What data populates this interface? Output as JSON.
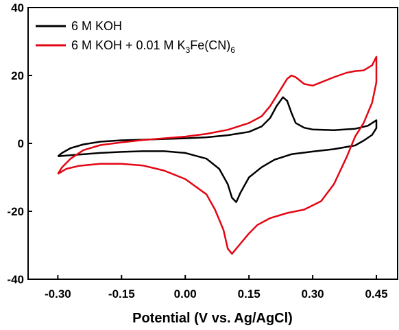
{
  "chart_data": {
    "type": "line",
    "title": "",
    "xlabel": "Potential (V vs. Ag/AgCl)",
    "ylabel": "",
    "xlim": [
      -0.37,
      0.5
    ],
    "ylim": [
      -40,
      40
    ],
    "x_ticks": [
      -0.3,
      -0.15,
      0.0,
      0.15,
      0.3,
      0.45
    ],
    "x_tick_labels": [
      "-0.30",
      "-0.15",
      "0.00",
      "0.15",
      "0.30",
      "0.45"
    ],
    "y_ticks": [
      -40,
      -20,
      0,
      20,
      40
    ],
    "y_tick_labels": [
      "-40",
      "-20",
      "0",
      "20",
      "40"
    ],
    "grid": false,
    "legend_position": "top-left",
    "series": [
      {
        "name": "6 M KOH",
        "color": "#000000",
        "points": [
          [
            -0.3,
            -3.8
          ],
          [
            -0.29,
            -2.8
          ],
          [
            -0.27,
            -1.4
          ],
          [
            -0.24,
            -0.3
          ],
          [
            -0.2,
            0.5
          ],
          [
            -0.15,
            0.9
          ],
          [
            -0.1,
            1.1
          ],
          [
            -0.05,
            1.3
          ],
          [
            0.0,
            1.5
          ],
          [
            0.05,
            1.8
          ],
          [
            0.1,
            2.4
          ],
          [
            0.15,
            3.4
          ],
          [
            0.18,
            5.0
          ],
          [
            0.2,
            7.5
          ],
          [
            0.215,
            11.0
          ],
          [
            0.23,
            13.6
          ],
          [
            0.24,
            12.5
          ],
          [
            0.25,
            9.0
          ],
          [
            0.26,
            6.0
          ],
          [
            0.28,
            4.6
          ],
          [
            0.3,
            4.1
          ],
          [
            0.35,
            3.9
          ],
          [
            0.4,
            4.3
          ],
          [
            0.43,
            5.2
          ],
          [
            0.45,
            6.8
          ],
          [
            0.45,
            4.5
          ],
          [
            0.44,
            2.5
          ],
          [
            0.42,
            0.8
          ],
          [
            0.4,
            -0.6
          ],
          [
            0.35,
            -1.7
          ],
          [
            0.3,
            -2.4
          ],
          [
            0.25,
            -3.2
          ],
          [
            0.21,
            -4.8
          ],
          [
            0.18,
            -7.0
          ],
          [
            0.15,
            -10.0
          ],
          [
            0.13,
            -14.5
          ],
          [
            0.12,
            -17.3
          ],
          [
            0.11,
            -16.0
          ],
          [
            0.1,
            -12.0
          ],
          [
            0.08,
            -7.5
          ],
          [
            0.05,
            -4.5
          ],
          [
            0.0,
            -2.8
          ],
          [
            -0.05,
            -2.3
          ],
          [
            -0.1,
            -2.3
          ],
          [
            -0.15,
            -2.5
          ],
          [
            -0.2,
            -2.8
          ],
          [
            -0.25,
            -3.3
          ],
          [
            -0.3,
            -3.8
          ]
        ]
      },
      {
        "name": "6 M KOH + 0.01 M K3Fe(CN)6",
        "color": "#e30613",
        "points": [
          [
            -0.3,
            -9.0
          ],
          [
            -0.29,
            -7.0
          ],
          [
            -0.27,
            -4.5
          ],
          [
            -0.24,
            -2.0
          ],
          [
            -0.2,
            -0.5
          ],
          [
            -0.15,
            0.3
          ],
          [
            -0.1,
            1.0
          ],
          [
            -0.05,
            1.5
          ],
          [
            0.0,
            2.0
          ],
          [
            0.05,
            2.8
          ],
          [
            0.1,
            4.0
          ],
          [
            0.15,
            6.0
          ],
          [
            0.18,
            8.0
          ],
          [
            0.2,
            11.0
          ],
          [
            0.22,
            15.0
          ],
          [
            0.24,
            19.0
          ],
          [
            0.25,
            20.0
          ],
          [
            0.26,
            19.5
          ],
          [
            0.28,
            17.5
          ],
          [
            0.3,
            17.0
          ],
          [
            0.32,
            18.0
          ],
          [
            0.35,
            19.5
          ],
          [
            0.38,
            20.8
          ],
          [
            0.4,
            21.3
          ],
          [
            0.42,
            21.5
          ],
          [
            0.44,
            23.0
          ],
          [
            0.45,
            25.5
          ],
          [
            0.45,
            18.0
          ],
          [
            0.44,
            12.0
          ],
          [
            0.42,
            6.0
          ],
          [
            0.4,
            2.0
          ],
          [
            0.38,
            -4.0
          ],
          [
            0.35,
            -12.0
          ],
          [
            0.32,
            -17.0
          ],
          [
            0.28,
            -19.5
          ],
          [
            0.24,
            -20.5
          ],
          [
            0.2,
            -22.0
          ],
          [
            0.17,
            -24.0
          ],
          [
            0.15,
            -26.5
          ],
          [
            0.13,
            -29.5
          ],
          [
            0.11,
            -32.5
          ],
          [
            0.1,
            -31.0
          ],
          [
            0.09,
            -25.5
          ],
          [
            0.07,
            -19.5
          ],
          [
            0.05,
            -15.0
          ],
          [
            0.0,
            -10.5
          ],
          [
            -0.05,
            -8.0
          ],
          [
            -0.1,
            -6.5
          ],
          [
            -0.15,
            -6.0
          ],
          [
            -0.2,
            -6.0
          ],
          [
            -0.25,
            -6.6
          ],
          [
            -0.28,
            -7.5
          ],
          [
            -0.3,
            -9.0
          ]
        ]
      }
    ],
    "legend": {
      "entries": [
        {
          "text": "6 M KOH"
        },
        {
          "base": "6 M KOH + 0.01 M K",
          "sub1": "3",
          "mid": "Fe(CN)",
          "sub2": "6"
        }
      ]
    }
  }
}
